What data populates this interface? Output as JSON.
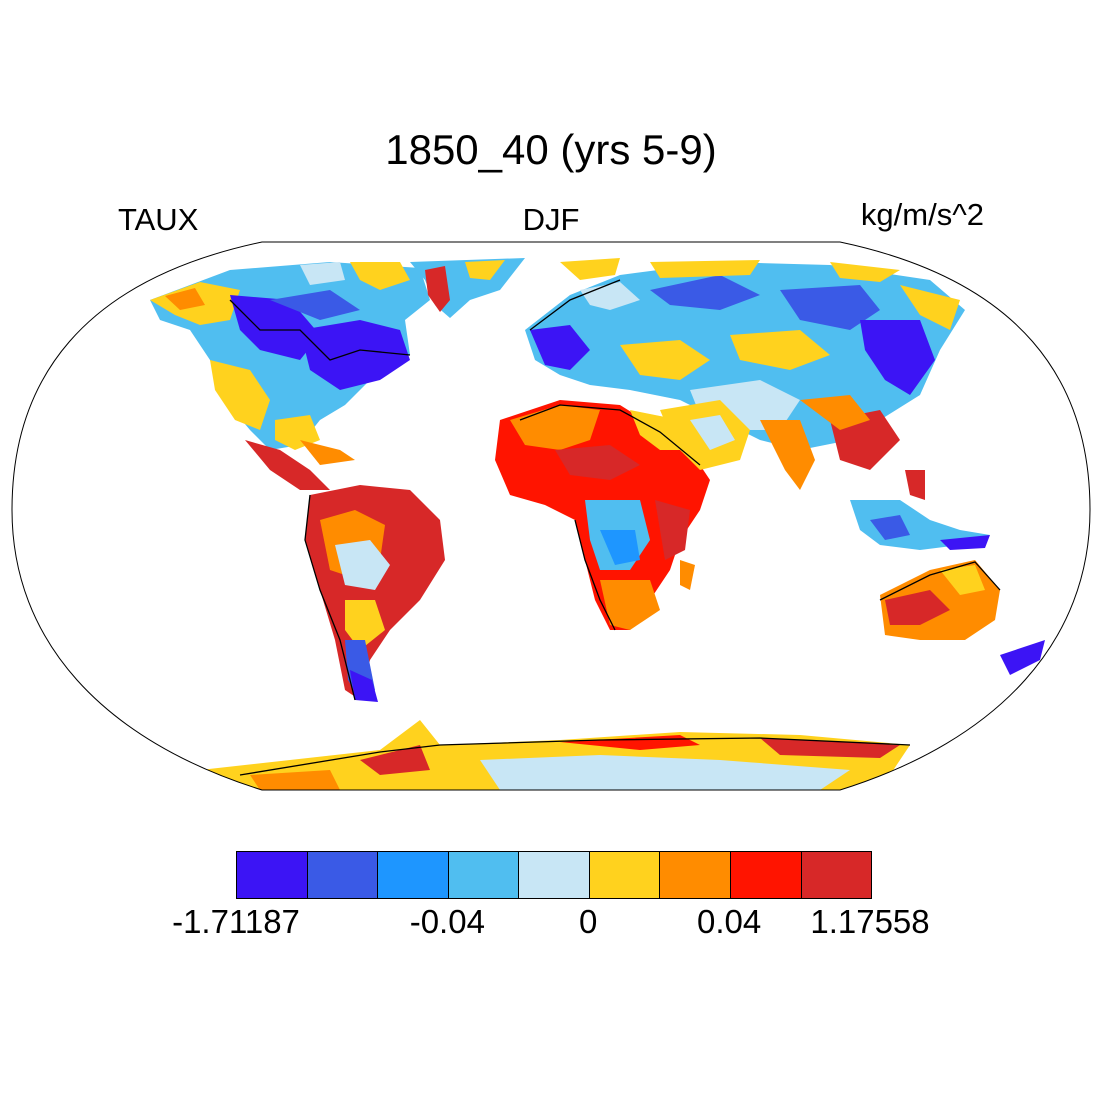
{
  "title": "1850_40 (yrs 5-9)",
  "left_label": "TAUX",
  "center_label": "DJF",
  "right_label": "kg/m/s^2",
  "colorbar": {
    "colors": [
      "#3c14f5",
      "#3a5ae6",
      "#1e96ff",
      "#50bef0",
      "#c8e6f5",
      "#ffd21e",
      "#ff8c00",
      "#ff1400",
      "#d72828"
    ],
    "labels": [
      "-1.71187",
      "-0.04",
      "0",
      "0.04",
      "1.17558"
    ]
  }
}
